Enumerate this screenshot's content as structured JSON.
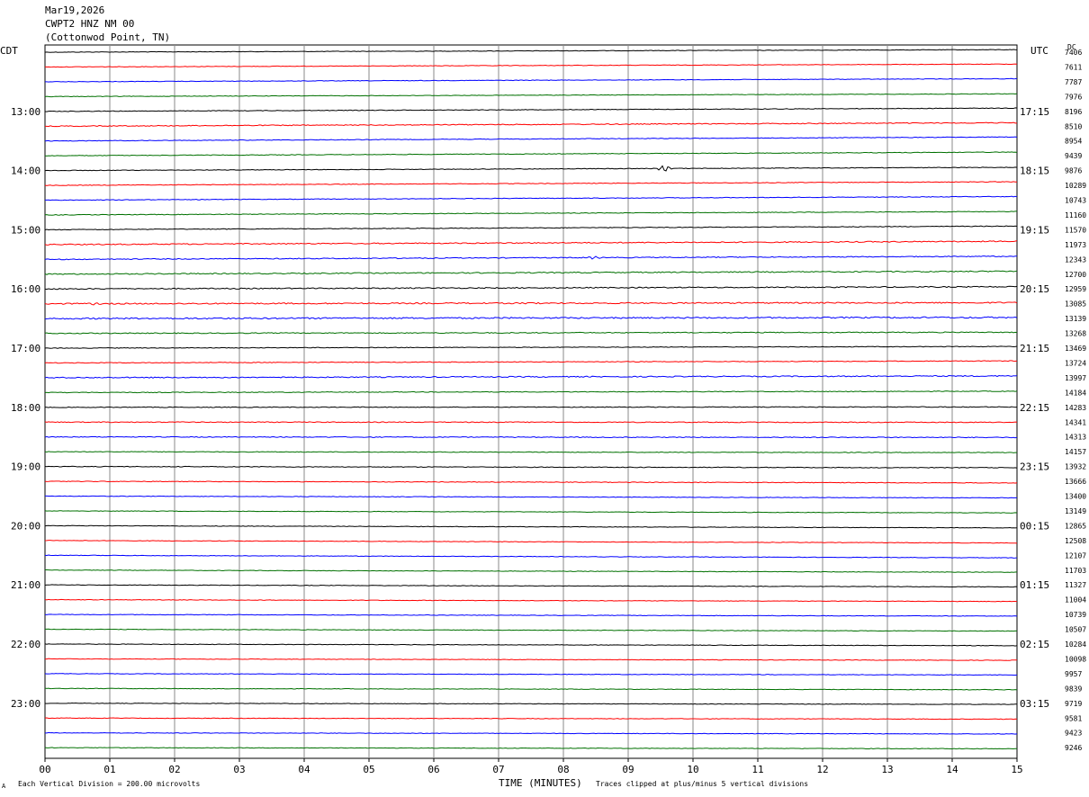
{
  "header": {
    "date": "Mar19,2026",
    "station": "CWPT2 HNZ NM 00",
    "location": "(Cottonwod Point, TN)"
  },
  "left_timezone": "CDT",
  "right_timezone": "UTC",
  "dc_label": "DC",
  "footer": {
    "scale_note": "Each Vertical Division =  200.00 microvolts",
    "clip_note": "Traces clipped at plus/minus 5 vertical divisions",
    "corner_mark": "A"
  },
  "chart_data": {
    "type": "line",
    "title": "",
    "xlabel": "TIME (MINUTES)",
    "x_ticks": [
      "00",
      "01",
      "02",
      "03",
      "04",
      "05",
      "06",
      "07",
      "08",
      "09",
      "10",
      "11",
      "12",
      "13",
      "14",
      "15"
    ],
    "xlim": [
      0,
      15
    ],
    "trace_colors": [
      "#000000",
      "#ff0000",
      "#0000ff",
      "#007000"
    ],
    "grid": true,
    "left_hour_labels": [
      "13:00",
      "14:00",
      "15:00",
      "16:00",
      "17:00",
      "18:00",
      "19:00",
      "20:00",
      "21:00",
      "22:00",
      "23:00"
    ],
    "right_hour_labels": [
      "17:15",
      "18:15",
      "19:15",
      "20:15",
      "21:15",
      "22:15",
      "23:15",
      "00:15",
      "01:15",
      "02:15",
      "03:15"
    ],
    "dc_values": [
      "7406",
      "7611",
      "7787",
      "7976",
      "8196",
      "8510",
      "8954",
      "9439",
      "9876",
      "10289",
      "10743",
      "11160",
      "11570",
      "11973",
      "12343",
      "12700",
      "12959",
      "13085",
      "13139",
      "13268",
      "13469",
      "13724",
      "13997",
      "14184",
      "14283",
      "14341",
      "14313",
      "14157",
      "13932",
      "13666",
      "13400",
      "13149",
      "12865",
      "12508",
      "12107",
      "11703",
      "11327",
      "11004",
      "10739",
      "10507",
      "10284",
      "10098",
      "9957",
      "9839",
      "9719",
      "9581",
      "9423",
      "9246"
    ],
    "trace_drift": [
      -0.7,
      -0.8,
      -0.85,
      -0.75,
      -0.9,
      -0.95,
      -1.1,
      -1.0,
      -0.9,
      -1.0,
      -1.0,
      -0.95,
      -1.0,
      -0.9,
      -0.85,
      -0.8,
      -0.6,
      -0.3,
      -0.3,
      -0.3,
      -0.45,
      -0.55,
      -0.5,
      -0.35,
      -0.1,
      0.05,
      0.15,
      0.25,
      0.35,
      0.45,
      0.5,
      0.55,
      0.6,
      0.7,
      0.7,
      0.6,
      0.55,
      0.5,
      0.45,
      0.5,
      0.45,
      0.4,
      0.35,
      0.35,
      0.3,
      0.3,
      0.3,
      0.3
    ],
    "trace_noise": [
      0.3,
      0.3,
      0.3,
      0.3,
      0.35,
      0.5,
      0.35,
      0.35,
      0.35,
      0.35,
      0.35,
      0.35,
      0.4,
      0.6,
      0.5,
      0.6,
      0.6,
      0.7,
      0.8,
      0.5,
      0.35,
      0.4,
      0.6,
      0.4,
      0.4,
      0.45,
      0.45,
      0.35,
      0.4,
      0.35,
      0.3,
      0.3,
      0.3,
      0.3,
      0.3,
      0.3,
      0.3,
      0.3,
      0.3,
      0.3,
      0.3,
      0.3,
      0.3,
      0.3,
      0.3,
      0.3,
      0.3,
      0.3
    ],
    "events": [
      {
        "trace": 8,
        "minute": 9.55,
        "amplitude_divisions": 1.3
      },
      {
        "trace": 14,
        "minute": 8.45,
        "amplitude_divisions": 0.6
      },
      {
        "trace": 17,
        "minute": 0.75,
        "amplitude_divisions": 0.3
      },
      {
        "trace": 17,
        "minute": 7.4,
        "amplitude_divisions": 0.3
      }
    ]
  }
}
